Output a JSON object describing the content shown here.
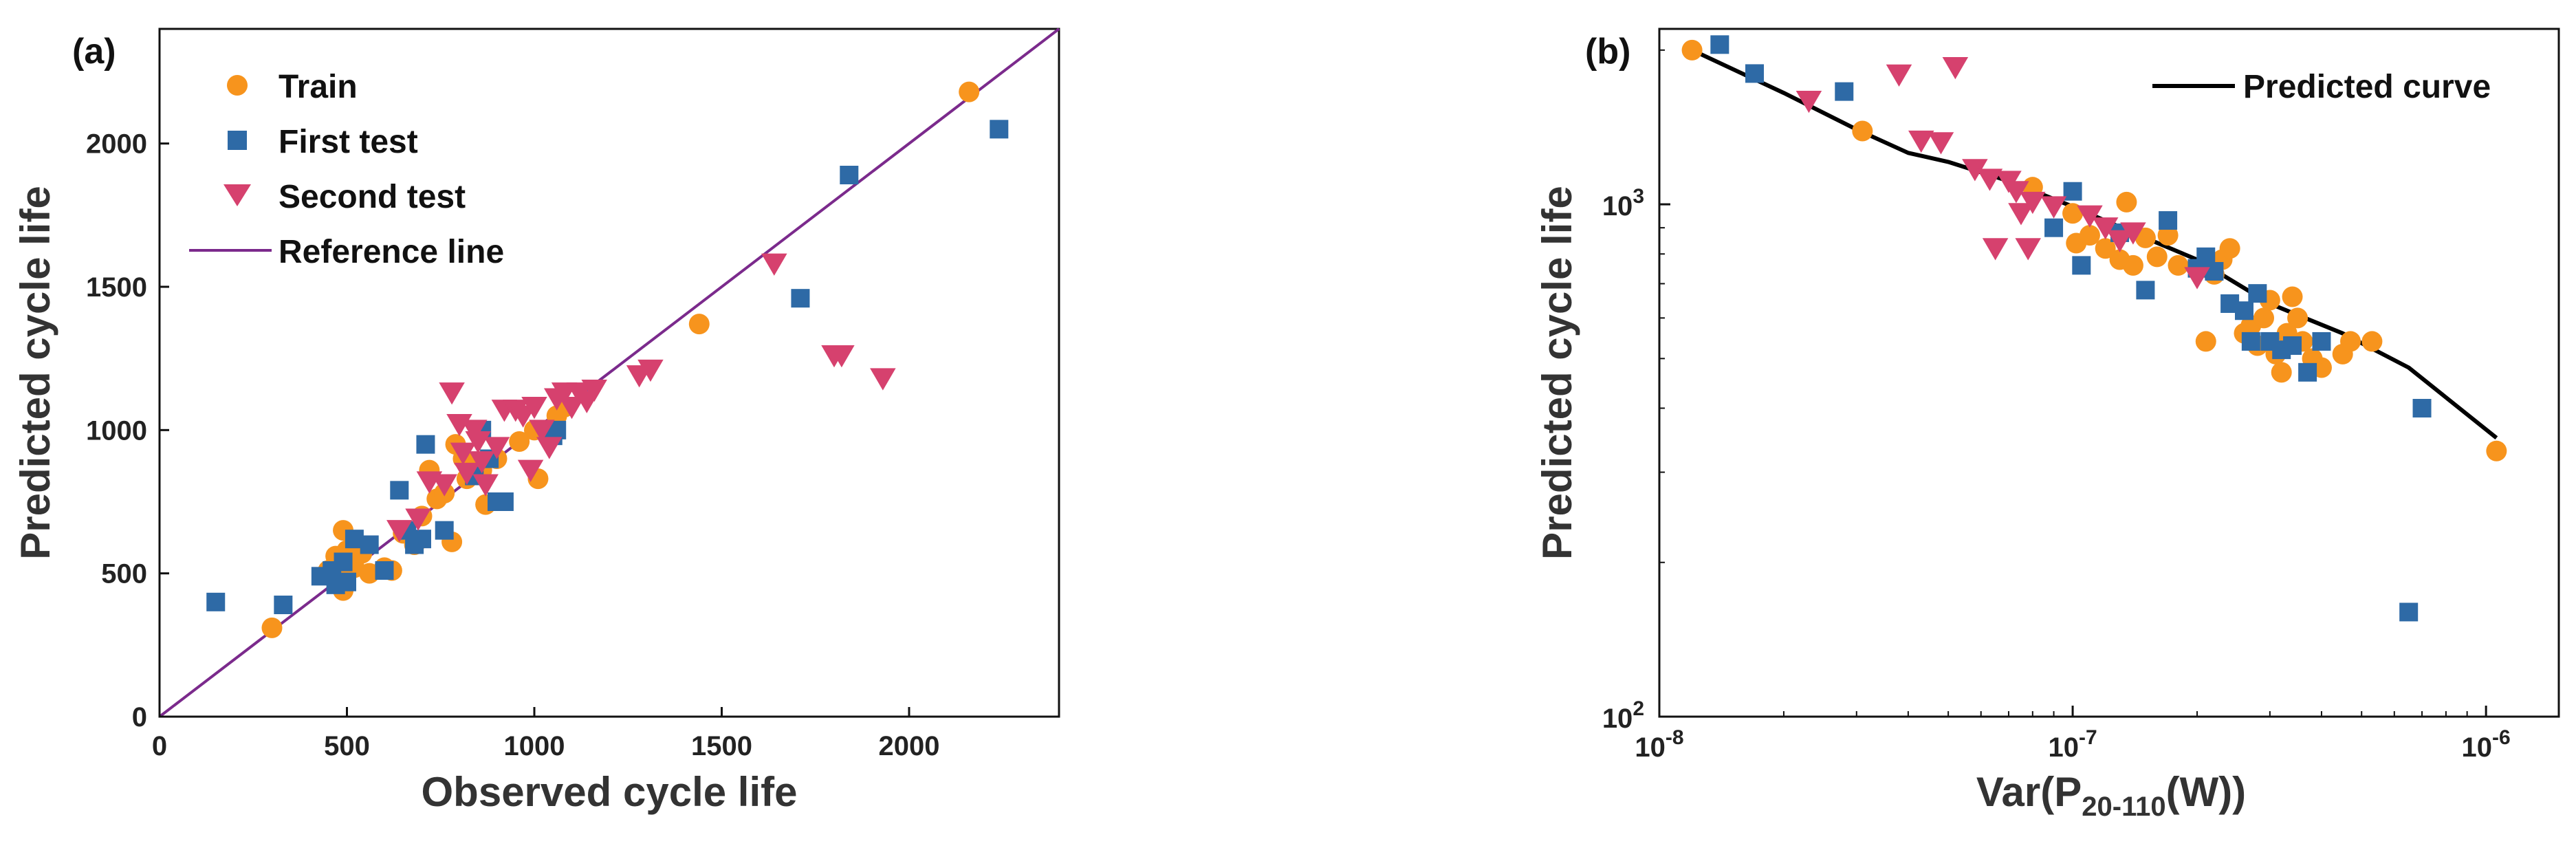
{
  "chart_data": [
    {
      "panel_label": "(a)",
      "type": "scatter",
      "xlabel": "Observed cycle life",
      "ylabel": "Predicted cycle life",
      "xlim": [
        0,
        2400
      ],
      "ylim": [
        0,
        2400
      ],
      "xticks": [
        0,
        500,
        1000,
        1500,
        2000
      ],
      "yticks": [
        0,
        500,
        1000,
        1500,
        2000
      ],
      "grid": false,
      "legend_position": "top-left",
      "colors": {
        "train": "#f7941d",
        "first": "#2e6aa6",
        "second": "#d6416e",
        "reference": "#7b2a8c"
      },
      "reference_line": {
        "name": "Reference line",
        "from": [
          0,
          0
        ],
        "to": [
          2400,
          2400
        ]
      },
      "series": [
        {
          "name": "Train",
          "marker": "circle",
          "points": [
            [
              300,
              310
            ],
            [
              450,
              510
            ],
            [
              470,
              560
            ],
            [
              480,
              480
            ],
            [
              490,
              440
            ],
            [
              490,
              650
            ],
            [
              500,
              580
            ],
            [
              520,
              520
            ],
            [
              540,
              570
            ],
            [
              560,
              500
            ],
            [
              600,
              520
            ],
            [
              620,
              510
            ],
            [
              650,
              640
            ],
            [
              680,
              600
            ],
            [
              700,
              700
            ],
            [
              720,
              860
            ],
            [
              740,
              760
            ],
            [
              760,
              780
            ],
            [
              780,
              610
            ],
            [
              790,
              950
            ],
            [
              810,
              900
            ],
            [
              820,
              830
            ],
            [
              840,
              880
            ],
            [
              860,
              860
            ],
            [
              870,
              740
            ],
            [
              900,
              900
            ],
            [
              960,
              960
            ],
            [
              1000,
              1000
            ],
            [
              1010,
              830
            ],
            [
              1060,
              1050
            ],
            [
              1080,
              1080
            ],
            [
              1440,
              1370
            ],
            [
              2160,
              2180
            ]
          ]
        },
        {
          "name": "First test",
          "marker": "square",
          "points": [
            [
              150,
              400
            ],
            [
              330,
              390
            ],
            [
              430,
              490
            ],
            [
              460,
              510
            ],
            [
              470,
              460
            ],
            [
              490,
              540
            ],
            [
              500,
              470
            ],
            [
              520,
              620
            ],
            [
              560,
              600
            ],
            [
              600,
              510
            ],
            [
              640,
              790
            ],
            [
              660,
              650
            ],
            [
              680,
              600
            ],
            [
              700,
              620
            ],
            [
              710,
              950
            ],
            [
              760,
              650
            ],
            [
              840,
              840
            ],
            [
              860,
              1000
            ],
            [
              880,
              900
            ],
            [
              900,
              750
            ],
            [
              920,
              750
            ],
            [
              1050,
              980
            ],
            [
              1060,
              1000
            ],
            [
              1710,
              1460
            ],
            [
              1840,
              1890
            ],
            [
              2240,
              2050
            ]
          ]
        },
        {
          "name": "Second test",
          "marker": "triangle-down",
          "points": [
            [
              640,
              650
            ],
            [
              690,
              690
            ],
            [
              720,
              820
            ],
            [
              760,
              810
            ],
            [
              780,
              1130
            ],
            [
              800,
              1020
            ],
            [
              810,
              920
            ],
            [
              820,
              850
            ],
            [
              840,
              1000
            ],
            [
              850,
              960
            ],
            [
              860,
              890
            ],
            [
              870,
              810
            ],
            [
              900,
              940
            ],
            [
              920,
              1070
            ],
            [
              950,
              1070
            ],
            [
              970,
              1050
            ],
            [
              990,
              860
            ],
            [
              1000,
              1080
            ],
            [
              1020,
              1000
            ],
            [
              1040,
              940
            ],
            [
              1060,
              1110
            ],
            [
              1080,
              1130
            ],
            [
              1100,
              1080
            ],
            [
              1120,
              1130
            ],
            [
              1140,
              1100
            ],
            [
              1160,
              1140
            ],
            [
              1280,
              1190
            ],
            [
              1310,
              1210
            ],
            [
              1640,
              1580
            ],
            [
              1800,
              1260
            ],
            [
              1820,
              1260
            ],
            [
              1930,
              1180
            ]
          ]
        }
      ],
      "legend": [
        "Train",
        "First test",
        "Second test",
        "Reference line"
      ]
    },
    {
      "panel_label": "(b)",
      "type": "scatter",
      "xscale": "log",
      "yscale": "log",
      "xlabel_main": "Var(P",
      "xlabel_sub": "20-110",
      "xlabel_end": "(W))",
      "ylabel": "Predicted cycle life",
      "xlim": [
        1e-08,
        1.5e-06
      ],
      "ylim": [
        100,
        2200
      ],
      "xticks": [
        {
          "value": 1e-08,
          "base": "10",
          "exp": "-8"
        },
        {
          "value": 1e-07,
          "base": "10",
          "exp": "-7"
        },
        {
          "value": 1e-06,
          "base": "10",
          "exp": "-6"
        }
      ],
      "yticks": [
        {
          "value": 100,
          "base": "10",
          "exp": "2"
        },
        {
          "value": 1000,
          "base": "10",
          "exp": "3"
        }
      ],
      "grid": false,
      "legend_position": "top-right",
      "colors": {
        "train": "#f7941d",
        "first": "#2e6aa6",
        "second": "#d6416e",
        "curve": "#000000"
      },
      "series": [
        {
          "name": "Train",
          "marker": "circle",
          "points": [
            [
              1.2e-08,
              2000
            ],
            [
              3.1e-08,
              1390
            ],
            [
              8e-08,
              1080
            ],
            [
              1e-07,
              960
            ],
            [
              1.02e-07,
              840
            ],
            [
              1.1e-07,
              870
            ],
            [
              1.2e-07,
              820
            ],
            [
              1.3e-07,
              780
            ],
            [
              1.35e-07,
              1010
            ],
            [
              1.4e-07,
              760
            ],
            [
              1.5e-07,
              860
            ],
            [
              1.6e-07,
              790
            ],
            [
              1.7e-07,
              870
            ],
            [
              1.8e-07,
              760
            ],
            [
              2.1e-07,
              540
            ],
            [
              2.2e-07,
              730
            ],
            [
              2.3e-07,
              780
            ],
            [
              2.4e-07,
              820
            ],
            [
              2.6e-07,
              560
            ],
            [
              2.7e-07,
              580
            ],
            [
              2.8e-07,
              530
            ],
            [
              2.9e-07,
              600
            ],
            [
              3e-07,
              650
            ],
            [
              3.1e-07,
              510
            ],
            [
              3.2e-07,
              470
            ],
            [
              3.3e-07,
              560
            ],
            [
              3.4e-07,
              660
            ],
            [
              3.5e-07,
              600
            ],
            [
              3.6e-07,
              540
            ],
            [
              3.8e-07,
              500
            ],
            [
              4e-07,
              480
            ],
            [
              4.5e-07,
              510
            ],
            [
              4.7e-07,
              540
            ],
            [
              5.3e-07,
              540
            ],
            [
              1.06e-06,
              330
            ]
          ]
        },
        {
          "name": "First test",
          "marker": "square",
          "points": [
            [
              1.4e-08,
              2050
            ],
            [
              1.7e-08,
              1800
            ],
            [
              2.8e-08,
              1660
            ],
            [
              9e-08,
              900
            ],
            [
              1e-07,
              1060
            ],
            [
              1.05e-07,
              760
            ],
            [
              1.3e-07,
              880
            ],
            [
              1.5e-07,
              680
            ],
            [
              1.7e-07,
              930
            ],
            [
              2e-07,
              750
            ],
            [
              2.1e-07,
              790
            ],
            [
              2.2e-07,
              740
            ],
            [
              2.4e-07,
              640
            ],
            [
              2.6e-07,
              620
            ],
            [
              2.7e-07,
              540
            ],
            [
              2.8e-07,
              670
            ],
            [
              3e-07,
              540
            ],
            [
              3.2e-07,
              520
            ],
            [
              3.4e-07,
              530
            ],
            [
              3.7e-07,
              470
            ],
            [
              4e-07,
              540
            ],
            [
              6.5e-07,
              160
            ],
            [
              7e-07,
              400
            ]
          ]
        },
        {
          "name": "Second test",
          "marker": "triangle-down",
          "points": [
            [
              2.3e-08,
              1590
            ],
            [
              3.8e-08,
              1790
            ],
            [
              4.3e-08,
              1330
            ],
            [
              4.8e-08,
              1320
            ],
            [
              5.2e-08,
              1850
            ],
            [
              5.8e-08,
              1170
            ],
            [
              6.3e-08,
              1120
            ],
            [
              6.5e-08,
              820
            ],
            [
              7e-08,
              1110
            ],
            [
              7.3e-08,
              1060
            ],
            [
              7.5e-08,
              960
            ],
            [
              7.8e-08,
              820
            ],
            [
              8e-08,
              1010
            ],
            [
              9e-08,
              990
            ],
            [
              1.1e-07,
              950
            ],
            [
              1.2e-07,
              900
            ],
            [
              1.3e-07,
              850
            ],
            [
              1.4e-07,
              880
            ],
            [
              2e-07,
              720
            ]
          ]
        },
        {
          "name": "Predicted curve",
          "type": "line",
          "points": [
            [
              1.2e-08,
              2000
            ],
            [
              2e-08,
              1650
            ],
            [
              3e-08,
              1400
            ],
            [
              4e-08,
              1260
            ],
            [
              5e-08,
              1210
            ],
            [
              7e-08,
              1110
            ],
            [
              1e-07,
              990
            ],
            [
              1.4e-07,
              880
            ],
            [
              2e-07,
              780
            ],
            [
              3e-07,
              640
            ],
            [
              4.5e-07,
              560
            ],
            [
              6.5e-07,
              480
            ],
            [
              1.06e-06,
              350
            ]
          ]
        }
      ],
      "legend": [
        "Predicted curve"
      ]
    }
  ]
}
